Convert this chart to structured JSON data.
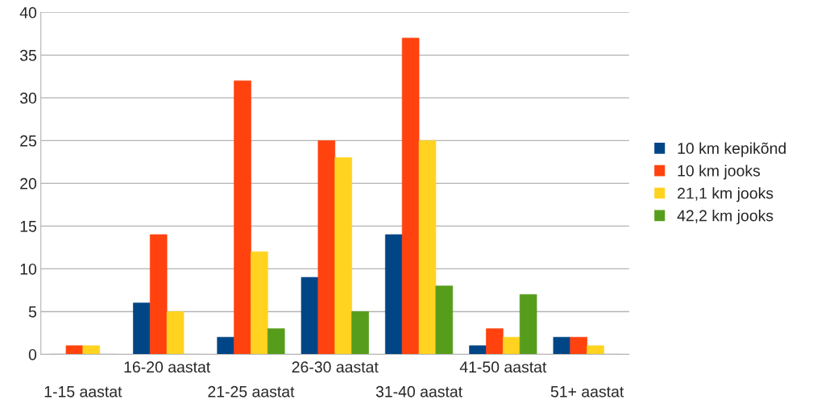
{
  "chart_data": {
    "type": "bar",
    "categories": [
      "1-15 aastat",
      "16-20 aastat",
      "21-25 aastat",
      "26-30 aastat",
      "31-40 aastat",
      "41-50 aastat",
      "51+ aastat"
    ],
    "series": [
      {
        "name": "10 km kepikõnd",
        "color": "#004586",
        "values": [
          0,
          6,
          2,
          9,
          14,
          1,
          2
        ]
      },
      {
        "name": "10 km jooks",
        "color": "#ff420e",
        "values": [
          1,
          14,
          32,
          25,
          37,
          3,
          2
        ]
      },
      {
        "name": "21,1 km jooks",
        "color": "#ffd320",
        "values": [
          1,
          5,
          12,
          23,
          25,
          2,
          1
        ]
      },
      {
        "name": "42,2 km jooks",
        "color": "#579d1c",
        "values": [
          0,
          0,
          3,
          5,
          8,
          7,
          0
        ]
      }
    ],
    "ylim": [
      0,
      40
    ],
    "yticks": [
      0,
      5,
      10,
      15,
      20,
      25,
      30,
      35,
      40
    ],
    "grid": "y",
    "legend": "right"
  }
}
